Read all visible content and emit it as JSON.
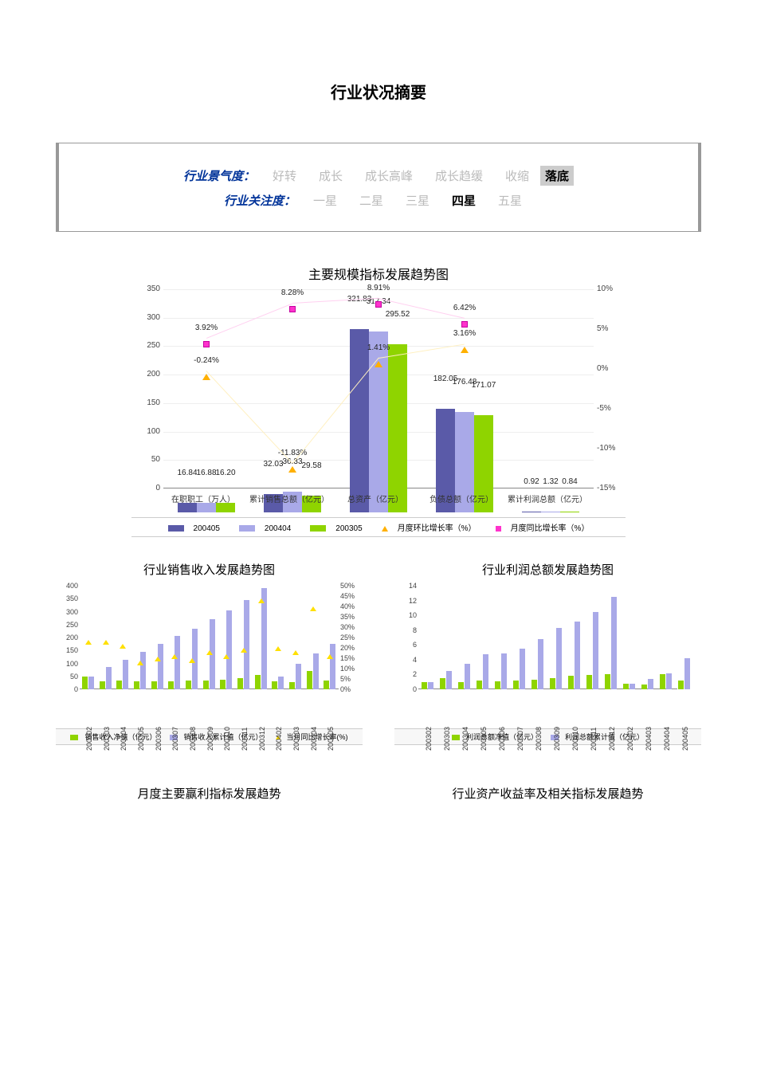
{
  "page_title": "行业状况摘要",
  "status": {
    "rows": [
      {
        "label": "行业景气度：",
        "options": [
          {
            "text": "好转",
            "sel": false,
            "hl": false
          },
          {
            "text": "成长",
            "sel": false,
            "hl": false
          },
          {
            "text": "成长高峰",
            "sel": false,
            "hl": false
          },
          {
            "text": "成长趋缓",
            "sel": false,
            "hl": false
          },
          {
            "text": "收缩",
            "sel": false,
            "hl": false
          },
          {
            "text": "落底",
            "sel": true,
            "hl": true
          }
        ]
      },
      {
        "label": "行业关注度：",
        "options": [
          {
            "text": "一星",
            "sel": false,
            "hl": false
          },
          {
            "text": "二星",
            "sel": false,
            "hl": false
          },
          {
            "text": "三星",
            "sel": false,
            "hl": false
          },
          {
            "text": "四星",
            "sel": true,
            "hl": false
          },
          {
            "text": "五星",
            "sel": false,
            "hl": false
          }
        ]
      }
    ]
  },
  "chart1": {
    "title": "主要规模指标发展趋势图",
    "type": "bar+line",
    "categories": [
      "在职职工（万人）",
      "累计销售总额（亿元）",
      "总资产（亿元）",
      "负债总额（亿元）",
      "累计利润总额（亿元）"
    ],
    "series": [
      {
        "name": "200405",
        "color": "#5a5aa8",
        "values": [
          16.84,
          32.03,
          321.83,
          182.05,
          0.92
        ]
      },
      {
        "name": "200404",
        "color": "#a9a9e8",
        "values": [
          16.88,
          36.33,
          317.34,
          176.48,
          1.32
        ]
      },
      {
        "name": "200305",
        "color": "#8fd400",
        "values": [
          16.2,
          29.58,
          295.52,
          171.07,
          0.84
        ]
      }
    ],
    "line_series": [
      {
        "name": "月度环比增长率（%）",
        "type": "triangle",
        "color": "#ffb000",
        "line_color": "#fff0c0",
        "values_pct": [
          -0.24,
          -11.83,
          1.41,
          3.16,
          null
        ]
      },
      {
        "name": "月度同比增长率（%）",
        "type": "square",
        "color": "#ff33cc",
        "line_color": "#ffd0f0",
        "values_pct": [
          3.92,
          8.28,
          8.91,
          6.42,
          null
        ]
      }
    ],
    "y_left": {
      "min": 0,
      "max": 350,
      "step": 50
    },
    "y_right": {
      "min": -15,
      "max": 10,
      "step": 5,
      "unit": "%"
    },
    "label_fontsize": 10,
    "title_fontsize": 16,
    "background_color": "#ffffff",
    "grid_color": "#eeeeee",
    "legend": [
      "200405",
      "200404",
      "200305",
      "月度环比增长率（%）",
      "月度同比增长率（%）"
    ]
  },
  "chart2": {
    "title": "行业销售收入发展趋势图",
    "categories": [
      "200302",
      "200303",
      "200304",
      "200305",
      "200306",
      "200307",
      "200308",
      "200309",
      "200310",
      "200311",
      "200312",
      "200402",
      "200403",
      "200404",
      "200405"
    ],
    "series_green": {
      "name": "销售收入净值（亿元）",
      "color": "#8fd400",
      "values": [
        50,
        30,
        35,
        30,
        30,
        32,
        33,
        35,
        38,
        42,
        55,
        30,
        28,
        70,
        35
      ]
    },
    "series_purple": {
      "name": "销售收入累计值（亿元）",
      "color": "#a9a9e8",
      "values": [
        50,
        85,
        115,
        145,
        175,
        205,
        235,
        270,
        305,
        345,
        390,
        50,
        100,
        140,
        175
      ]
    },
    "series_tri": {
      "name": "当月同比增长率(%)",
      "color": "#ffe000",
      "values_pct": [
        25,
        25,
        23,
        15,
        17,
        18,
        16,
        20,
        18,
        21,
        45,
        22,
        20,
        41,
        18
      ]
    },
    "y_left": {
      "min": 0,
      "max": 400,
      "step": 50
    },
    "y_right": {
      "min": 0,
      "max": 50,
      "step": 5,
      "unit": "%"
    }
  },
  "chart3": {
    "title": "行业利润总额发展趋势图",
    "categories": [
      "200302",
      "200303",
      "200304",
      "200305",
      "200306",
      "200307",
      "200308",
      "200309",
      "200310",
      "200311",
      "200312",
      "200402",
      "200403",
      "200404",
      "200405"
    ],
    "series_green": {
      "name": "利润总额净值（亿元）",
      "color": "#8fd400",
      "values": [
        1.0,
        1.5,
        1.0,
        1.2,
        1.1,
        1.2,
        1.3,
        1.5,
        1.8,
        1.9,
        2.0,
        0.8,
        0.6,
        2.0,
        1.2
      ]
    },
    "series_purple": {
      "name": "利润总额累计值（亿元）",
      "color": "#a9a9e8",
      "values": [
        1.0,
        2.5,
        3.5,
        4.7,
        4.9,
        5.5,
        6.8,
        8.3,
        9.2,
        10.5,
        12.5,
        0.8,
        1.4,
        2.2,
        4.2
      ]
    },
    "y_left": {
      "min": 0,
      "max": 14,
      "step": 2
    }
  },
  "bottom_titles": [
    "月度主要赢利指标发展趋势",
    "行业资产收益率及相关指标发展趋势"
  ]
}
